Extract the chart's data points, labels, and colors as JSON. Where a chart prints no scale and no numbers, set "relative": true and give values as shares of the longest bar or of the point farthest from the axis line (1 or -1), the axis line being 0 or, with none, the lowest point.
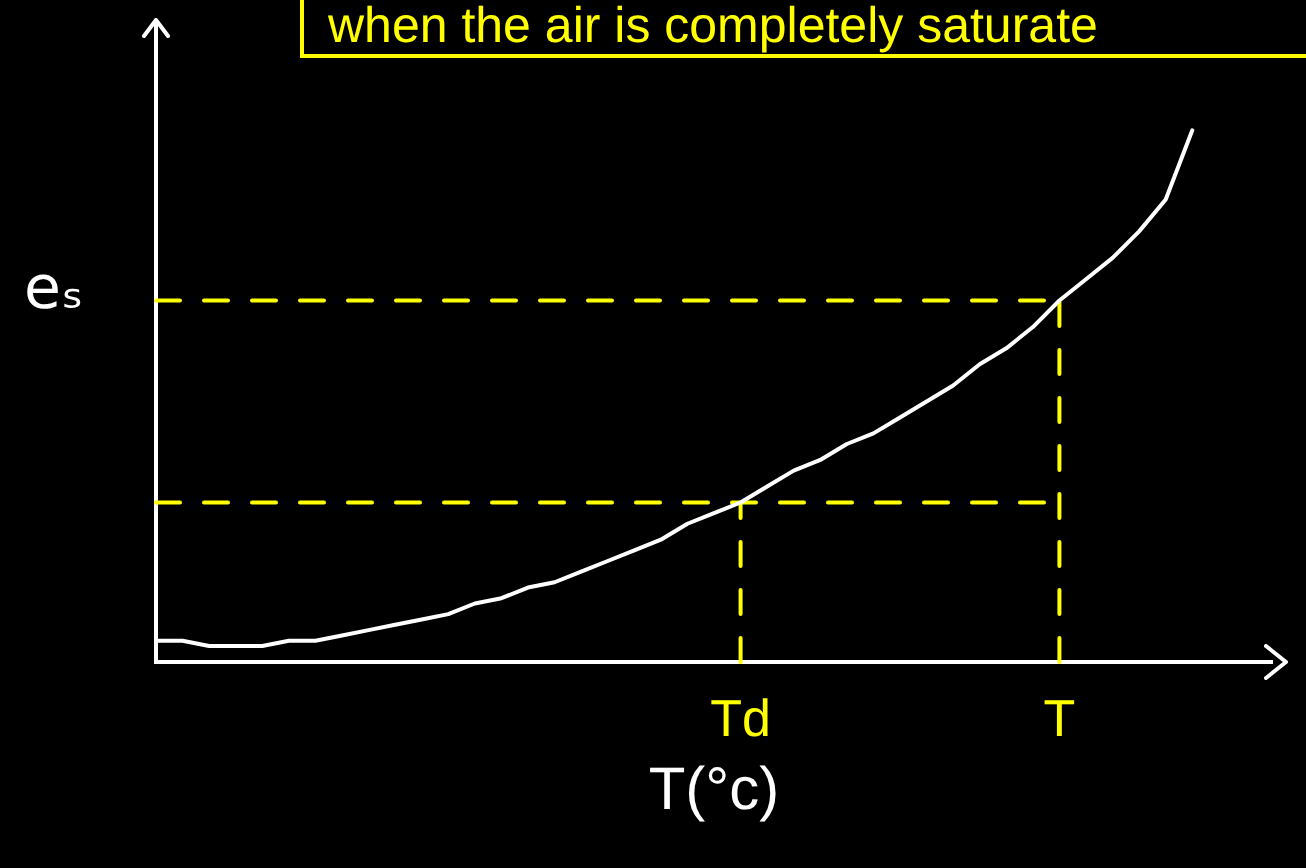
{
  "chart_data": {
    "type": "line",
    "title": "when the air is completely saturate",
    "xlabel": "T(°c)",
    "ylabel": "eₛ",
    "relative": true,
    "marker": "none",
    "categories": [
      null,
      null,
      null,
      null,
      null,
      null,
      null,
      null,
      null,
      null,
      null,
      null,
      null,
      null,
      null,
      null,
      null,
      null,
      null,
      null,
      null,
      null,
      "Td",
      null,
      null,
      null,
      null,
      null,
      null,
      null,
      null,
      null,
      null,
      null,
      "T",
      null,
      null,
      null,
      null,
      null,
      null,
      null,
      null
    ],
    "series": [
      {
        "color": "#ffffff",
        "values": [
          0.04,
          0.04,
          0.03,
          0.03,
          0.03,
          0.04,
          0.04,
          0.05,
          0.06,
          0.07,
          0.08,
          0.09,
          0.11,
          0.12,
          0.14,
          0.15,
          0.17,
          0.19,
          0.21,
          0.23,
          0.26,
          0.28,
          0.3,
          0.33,
          0.36,
          0.38,
          0.41,
          0.43,
          0.46,
          0.49,
          0.52,
          0.56,
          0.59,
          0.63,
          0.68,
          0.72,
          0.76,
          0.81,
          0.87,
          1,
          null,
          null,
          null
        ]
      }
    ],
    "ref_lines": [
      {
        "axis": "y",
        "value": 0.3,
        "color": "#ffff00",
        "line_style": "dashed"
      },
      {
        "axis": "y",
        "value": 0.68,
        "color": "#ffff00",
        "line_style": "dashed"
      },
      {
        "axis": "x",
        "value": "Td",
        "color": "#ffff00",
        "line_style": "dashed"
      },
      {
        "axis": "x",
        "value": "T",
        "color": "#ffff00",
        "line_style": "dashed"
      }
    ]
  }
}
